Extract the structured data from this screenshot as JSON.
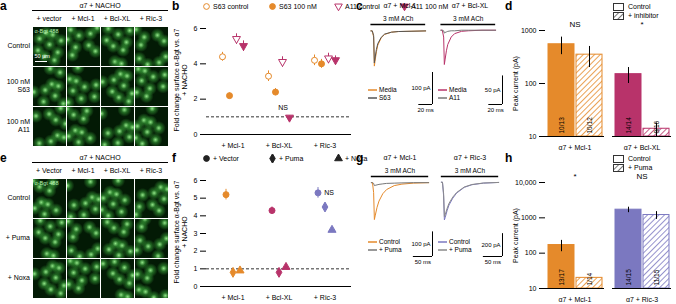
{
  "image_panels": [
    {
      "label": "a",
      "header": "α7 + NACHO",
      "columns": [
        "+ vector",
        "+ Mcl-1",
        "+ Bcl-XL",
        "+ Ric-3"
      ],
      "rows": [
        "Control",
        "100 nM S63",
        "100 nM A11"
      ],
      "stain": "α-Bgt 488",
      "scale_bar": "50 µm"
    },
    {
      "label": "e",
      "header": "α7 + NACHO",
      "columns": [
        "+ Vector",
        "+ Mcl-1",
        "+ Bcl-XL",
        "+ Ric-3"
      ],
      "rows": [
        "Control",
        "+ Puma",
        "+ Noxa"
      ],
      "stain": "α-Bgt 488"
    }
  ],
  "chart_data": [
    {
      "label": "b",
      "type": "scatter",
      "ylabel": "Fold change surface α-Bgt vs. α7 + NACHO",
      "categories": [
        "+ Mcl-1",
        "+ Bcl-XL",
        "+ Ric-3"
      ],
      "ylim": [
        0,
        6
      ],
      "yticks": [
        0,
        2,
        4,
        6
      ],
      "reference_line": 1,
      "legend": "top",
      "series": [
        {
          "name": "S63 control",
          "color": "#e58a2b",
          "marker": "circle-open",
          "values": [
            4.4,
            3.3,
            4.2
          ],
          "errors": [
            0.25,
            0.3,
            0.3
          ]
        },
        {
          "name": "S63 100 nM",
          "color": "#e58a2b",
          "marker": "circle",
          "values": [
            2.2,
            2.4,
            4.0
          ],
          "errors": [
            0.15,
            0.2,
            0.25
          ]
        },
        {
          "name": "A11 control",
          "color": "#b8336a",
          "marker": "triangle-down-open",
          "values": [
            5.4,
            4.1,
            4.3
          ],
          "errors": [
            0.3,
            0.3,
            0.3
          ]
        },
        {
          "name": "A11 100 nM",
          "color": "#b8336a",
          "marker": "triangle-down",
          "values": [
            5.0,
            0.95,
            4.2
          ],
          "errors": [
            0.3,
            0.1,
            0.25
          ]
        }
      ],
      "annotations": [
        {
          "text": "NS",
          "category": "+ Bcl-XL",
          "y": 1.5
        }
      ]
    },
    {
      "label": "c",
      "type": "line",
      "title": "α7 + Mcl-1",
      "tick_labels": false,
      "legend": "bottom-left",
      "xlim": [
        -5,
        90
      ],
      "ylim": [
        -230,
        20
      ],
      "x": [
        0,
        2,
        4,
        5,
        6,
        8,
        10,
        15,
        20,
        30,
        40,
        60,
        80
      ],
      "series": [
        {
          "name": "Media",
          "color": "#e58a2b",
          "values": [
            0,
            0,
            -20,
            -110,
            -95,
            -65,
            -45,
            -22,
            -11,
            -4,
            -2,
            -1,
            0
          ]
        },
        {
          "name": "S63",
          "color": "#555555",
          "values": [
            0,
            0,
            -15,
            -100,
            -85,
            -58,
            -40,
            -20,
            -10,
            -4,
            -2,
            -1,
            0
          ]
        }
      ],
      "stimulus": {
        "label": "3 mM ACh",
        "x": [
          0,
          80
        ]
      },
      "scale_bars": {
        "y": {
          "value": 100,
          "label": "100 pA"
        },
        "x": {
          "value": 20,
          "label": "20 ms"
        }
      }
    },
    {
      "type": "line",
      "title": "α7 + Bcl-XL",
      "tick_labels": false,
      "legend": "bottom-left",
      "xlim": [
        -5,
        90
      ],
      "ylim": [
        -130,
        10
      ],
      "x": [
        0,
        2,
        4,
        5,
        6,
        8,
        10,
        15,
        20,
        30,
        40,
        60,
        80
      ],
      "series": [
        {
          "name": "Media",
          "color": "#b8336a",
          "values": [
            0,
            0,
            -12,
            -60,
            -52,
            -36,
            -25,
            -12,
            -6,
            -2,
            -1,
            0,
            0
          ]
        },
        {
          "name": "A11",
          "color": "#777777",
          "values": [
            0,
            0,
            -1,
            -5,
            -4,
            -3,
            -2,
            -1,
            -1,
            0,
            0,
            0,
            0
          ]
        }
      ],
      "stimulus": {
        "label": "3 mM ACh",
        "x": [
          0,
          80
        ]
      },
      "scale_bars": {
        "y": {
          "value": 50,
          "label": "50 pA"
        },
        "x": {
          "value": 20,
          "label": "20 ms"
        }
      }
    },
    {
      "label": "d",
      "type": "bar",
      "ylabel": "Peak current (pA)",
      "log": "y",
      "legend": "top-right",
      "categories": [
        "α7 + Mcl-1",
        "α7 + Bcl-XL"
      ],
      "colors": [
        "#e58a2b",
        "#b8336a"
      ],
      "ylim": [
        10,
        1000
      ],
      "yticks": [
        10,
        100,
        1000
      ],
      "series": [
        {
          "name": "Control",
          "values": [
            550,
            150
          ],
          "errors": [
            200,
            50
          ],
          "counts": [
            "10/13",
            "14/14"
          ]
        },
        {
          "name": "+ inhibitor",
          "values": [
            350,
            14
          ],
          "errors": [
            150,
            4
          ],
          "counts": [
            "10/12",
            "8/16"
          ]
        }
      ],
      "annotations": [
        {
          "text": "NS",
          "category": "α7 + Mcl-1"
        },
        {
          "text": "*",
          "category": "α7 + Bcl-XL"
        }
      ]
    },
    {
      "label": "f",
      "type": "scatter",
      "ylabel": "Fold change surface α-Bgt vs. α7 + NACHO",
      "categories": [
        "+ Mcl-1",
        "+ Bcl-XL",
        "+ Ric-3"
      ],
      "colors": [
        "#e58a2b",
        "#b8336a",
        "#7b78c0"
      ],
      "ylim": [
        0,
        6
      ],
      "yticks": [
        0,
        1,
        2,
        3,
        4,
        5,
        6
      ],
      "reference_line": 1,
      "legend": "top",
      "series": [
        {
          "name": "+ Vector",
          "marker": "circle",
          "values": [
            5.2,
            4.3,
            5.3
          ],
          "errors": [
            0.3,
            0.2,
            0.3
          ]
        },
        {
          "name": "+ Puma",
          "marker": "diamond",
          "values": [
            0.8,
            0.8,
            4.5
          ],
          "errors": [
            0.1,
            0.1,
            0.2
          ]
        },
        {
          "name": "+ Noxa",
          "marker": "triangle",
          "values": [
            0.9,
            1.1,
            3.2
          ],
          "errors": [
            0.1,
            0.1,
            0.15
          ]
        }
      ],
      "annotations": [
        {
          "text": "NS",
          "category": "+ Ric-3",
          "y": 5.3
        }
      ]
    },
    {
      "label": "g",
      "type": "line",
      "title": "α7 + Mcl-1",
      "tick_labels": false,
      "legend": "bottom-left",
      "xlim": [
        -10,
        160
      ],
      "ylim": [
        -300,
        25
      ],
      "x": [
        0,
        3,
        6,
        8,
        10,
        15,
        20,
        30,
        40,
        60,
        80,
        110,
        150
      ],
      "series": [
        {
          "name": "Control",
          "color": "#e58a2b",
          "values": [
            0,
            0,
            -40,
            -150,
            -135,
            -100,
            -75,
            -45,
            -28,
            -12,
            -6,
            -2,
            0
          ]
        },
        {
          "name": "+ Puma",
          "color": "#777777",
          "values": [
            0,
            0,
            -3,
            -12,
            -11,
            -9,
            -7,
            -5,
            -3,
            -2,
            -1,
            0,
            0
          ]
        }
      ],
      "stimulus": {
        "label": "3 mM ACh",
        "x": [
          0,
          150
        ]
      },
      "scale_bars": {
        "y": {
          "value": 100,
          "label": "100 pA"
        },
        "x": {
          "value": 50,
          "label": "50 ms"
        }
      }
    },
    {
      "type": "line",
      "title": "α7 + Ric-3",
      "tick_labels": false,
      "legend": "bottom-left",
      "xlim": [
        -10,
        160
      ],
      "ylim": [
        -650,
        50
      ],
      "x": [
        0,
        3,
        6,
        8,
        10,
        15,
        20,
        30,
        40,
        60,
        80,
        110,
        150
      ],
      "series": [
        {
          "name": "Control",
          "color": "#7b78c0",
          "values": [
            0,
            0,
            -120,
            -330,
            -310,
            -250,
            -200,
            -140,
            -95,
            -45,
            -22,
            -8,
            -2
          ]
        },
        {
          "name": "+ Puma",
          "color": "#8a8a8a",
          "values": [
            0,
            0,
            -100,
            -300,
            -285,
            -230,
            -185,
            -130,
            -90,
            -42,
            -20,
            -7,
            -2
          ]
        }
      ],
      "stimulus": {
        "label": "3 mM ACh",
        "x": [
          0,
          150
        ]
      },
      "scale_bars": {
        "y": {
          "value": 200,
          "label": "200 pA"
        },
        "x": {
          "value": 50,
          "label": "50 ms"
        }
      }
    },
    {
      "label": "h",
      "type": "bar",
      "ylabel": "Peak current (pA)",
      "log": "y",
      "legend": "top-right",
      "categories": [
        "α7 + Mcl-1",
        "α7 + Ric-3"
      ],
      "colors": [
        "#e58a2b",
        "#7b78c0"
      ],
      "ylim": [
        10,
        10000
      ],
      "yticks": [
        10,
        100,
        1000,
        {
          "value": 10000,
          "label": "10,000"
        }
      ],
      "series": [
        {
          "name": "Control",
          "values": [
            170,
            1700
          ],
          "errors": [
            60,
            300
          ],
          "counts": [
            "13/17",
            "14/15"
          ]
        },
        {
          "name": "+ Puma",
          "values": [
            20,
            1200
          ],
          "errors": [
            null,
            300
          ],
          "counts": [
            "1/14",
            "11/15"
          ]
        }
      ],
      "annotations": [
        {
          "text": "*",
          "category": "α7 + Mcl-1"
        },
        {
          "text": "NS",
          "category": "α7 + Ric-3"
        }
      ]
    }
  ]
}
